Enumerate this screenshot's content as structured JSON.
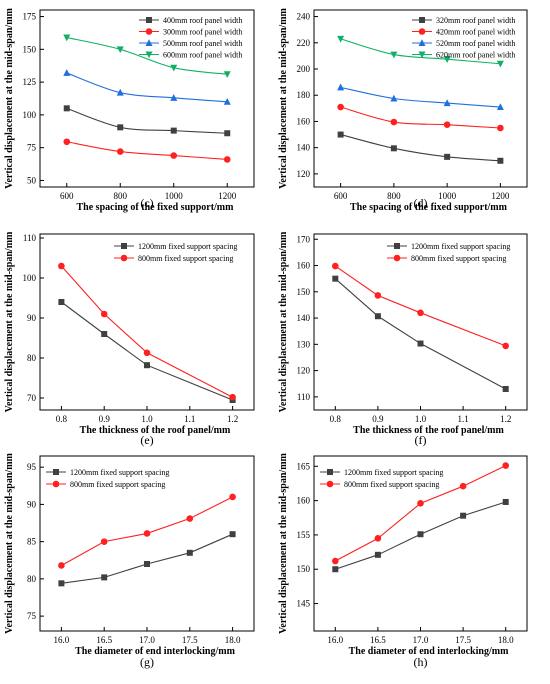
{
  "chart_data": [
    {
      "type": "line",
      "panel_label": "(c)",
      "xlabel": "The spacing of the fixed support/mm",
      "ylabel": "Vertical displacement at the mid-span/mm",
      "x": [
        600,
        800,
        1000,
        1200
      ],
      "xticks": [
        "600",
        "800",
        "1000",
        "1200"
      ],
      "xlim": [
        500,
        1300
      ],
      "yticks": [
        "50",
        "75",
        "100",
        "125",
        "150",
        "175"
      ],
      "ylim": [
        45,
        180
      ],
      "legend_position": "top-right",
      "series": [
        {
          "name": "400mm roof panel width",
          "color": "#404040",
          "marker": "square",
          "values": [
            105,
            90.5,
            88,
            86
          ]
        },
        {
          "name": "300mm roof panel width",
          "color": "#ff2020",
          "marker": "circle",
          "values": [
            79.5,
            72,
            69,
            66
          ]
        },
        {
          "name": "500mm roof panel width",
          "color": "#1f6fe0",
          "marker": "triangle-up",
          "values": [
            132,
            117,
            113,
            110
          ]
        },
        {
          "name": "600mm roof panel width",
          "color": "#11b067",
          "marker": "triangle-down",
          "values": [
            159,
            150,
            136,
            131
          ]
        }
      ]
    },
    {
      "type": "line",
      "panel_label": "(d)",
      "xlabel": "The spacing of the fixed support/mm",
      "ylabel": "Vertical displacement at the mid-span/mm",
      "x": [
        600,
        800,
        1000,
        1200
      ],
      "xticks": [
        "600",
        "800",
        "1000",
        "1200"
      ],
      "xlim": [
        500,
        1300
      ],
      "yticks": [
        "120",
        "140",
        "160",
        "180",
        "200",
        "220",
        "240"
      ],
      "ylim": [
        110,
        245
      ],
      "legend_position": "top-right",
      "series": [
        {
          "name": "320mm roof panel width",
          "color": "#404040",
          "marker": "square",
          "values": [
            150,
            139.5,
            133,
            130
          ]
        },
        {
          "name": "420mm roof panel width",
          "color": "#ff2020",
          "marker": "circle",
          "values": [
            171,
            159.5,
            157.5,
            155
          ]
        },
        {
          "name": "520mm roof panel width",
          "color": "#1f6fe0",
          "marker": "triangle-up",
          "values": [
            186,
            177.5,
            174,
            171
          ]
        },
        {
          "name": "620mm roof panel width",
          "color": "#11b067",
          "marker": "triangle-down",
          "values": [
            223,
            211,
            207.5,
            204
          ]
        }
      ]
    },
    {
      "type": "line",
      "panel_label": "(e)",
      "xlabel": "The thickness of the roof panel/mm",
      "ylabel": "Vertical displacement at the mid-span/mm",
      "x": [
        0.8,
        0.9,
        1.0,
        1.2
      ],
      "xticks": [
        "0.8",
        "0.9",
        "1.0",
        "1.1",
        "1.2"
      ],
      "xtick_values": [
        0.8,
        0.9,
        1.0,
        1.1,
        1.2
      ],
      "xlim": [
        0.75,
        1.25
      ],
      "yticks": [
        "70",
        "80",
        "90",
        "100",
        "110"
      ],
      "ylim": [
        67,
        111
      ],
      "legend_position": "top-right",
      "series": [
        {
          "name": "1200mm  fixed support spacing",
          "color": "#404040",
          "marker": "square",
          "values": [
            94,
            86,
            78.2,
            69.5
          ]
        },
        {
          "name": "800mm  fixed support spacing",
          "color": "#ff2020",
          "marker": "circle",
          "values": [
            103,
            91,
            81.3,
            70.2
          ]
        }
      ]
    },
    {
      "type": "line",
      "panel_label": "(f)",
      "xlabel": "The thickness of the roof panel/mm",
      "ylabel": "Vertical displacement at the mid-span/mm",
      "x": [
        0.8,
        0.9,
        1.0,
        1.2
      ],
      "xticks": [
        "0.8",
        "0.9",
        "1.0",
        "1.1",
        "1.2"
      ],
      "xtick_values": [
        0.8,
        0.9,
        1.0,
        1.1,
        1.2
      ],
      "xlim": [
        0.75,
        1.25
      ],
      "yticks": [
        "110",
        "120",
        "130",
        "140",
        "150",
        "160",
        "170"
      ],
      "ylim": [
        105,
        172
      ],
      "legend_position": "top-right",
      "series": [
        {
          "name": "1200mm  fixed support spacing",
          "color": "#404040",
          "marker": "square",
          "values": [
            155,
            140.7,
            130.3,
            113
          ]
        },
        {
          "name": "800mm  fixed support spacing",
          "color": "#ff2020",
          "marker": "circle",
          "values": [
            159.8,
            148.6,
            142,
            129.4
          ]
        }
      ]
    },
    {
      "type": "line",
      "panel_label": "(g)",
      "xlabel": "The diameter of end interlocking/mm",
      "ylabel": "Vertical displacement at the mid-span/mm",
      "x": [
        16.0,
        16.5,
        17.0,
        17.5,
        18.0
      ],
      "xticks": [
        "16.0",
        "16.5",
        "17.0",
        "17.5",
        "18.0"
      ],
      "xlim": [
        15.75,
        18.25
      ],
      "yticks": [
        "75",
        "80",
        "85",
        "90",
        "95"
      ],
      "ylim": [
        73,
        96.5
      ],
      "legend_position": "top-left",
      "series": [
        {
          "name": "1200mm  fixed support spacing",
          "color": "#404040",
          "marker": "square",
          "values": [
            79.4,
            80.2,
            82,
            83.5,
            86
          ]
        },
        {
          "name": "800mm  fixed support spacing",
          "color": "#ff2020",
          "marker": "circle",
          "values": [
            81.8,
            85,
            86.1,
            88.1,
            91
          ]
        }
      ]
    },
    {
      "type": "line",
      "panel_label": "(h)",
      "xlabel": "The diameter of end interlocking/mm",
      "ylabel": "Vertical displacement at the mid-span/mm",
      "x": [
        16.0,
        16.5,
        17.0,
        17.5,
        18.0
      ],
      "xticks": [
        "16.0",
        "16.5",
        "17.0",
        "17.5",
        "18.0"
      ],
      "xlim": [
        15.75,
        18.25
      ],
      "yticks": [
        "145",
        "150",
        "155",
        "160",
        "165"
      ],
      "ylim": [
        141,
        166.5
      ],
      "legend_position": "top-left",
      "series": [
        {
          "name": "1200mm  fixed support spacing",
          "color": "#404040",
          "marker": "square",
          "values": [
            150,
            152.1,
            155.1,
            157.8,
            159.8
          ]
        },
        {
          "name": "800mm  fixed support spacing",
          "color": "#ff2020",
          "marker": "circle",
          "values": [
            151.2,
            154.5,
            159.6,
            162.1,
            165.1
          ]
        }
      ]
    }
  ]
}
